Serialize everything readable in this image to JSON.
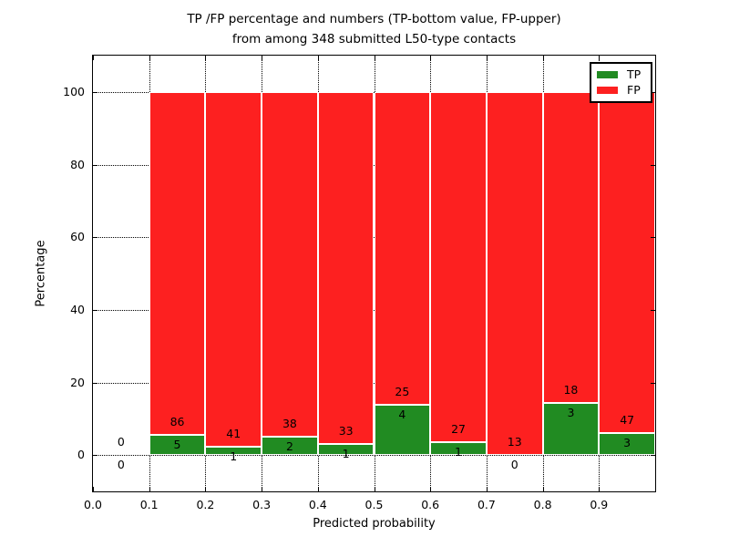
{
  "chart_data": {
    "type": "bar",
    "stacked": true,
    "title_lines": [
      "TP /FP percentage and numbers (TP-bottom value, FP-upper)",
      "from among 348 submitted L50-type contacts"
    ],
    "total_contacts": 348,
    "xlabel": "Predicted probability",
    "ylabel": "Percentage",
    "xlim": [
      0.0,
      1.0
    ],
    "ylim": [
      -10,
      110
    ],
    "grid": "dotted",
    "x_ticks": [
      {
        "v": 0.0,
        "label": "0.0"
      },
      {
        "v": 0.1,
        "label": "0.1"
      },
      {
        "v": 0.2,
        "label": "0.2"
      },
      {
        "v": 0.3,
        "label": "0.3"
      },
      {
        "v": 0.4,
        "label": "0.4"
      },
      {
        "v": 0.5,
        "label": "0.5"
      },
      {
        "v": 0.6,
        "label": "0.6"
      },
      {
        "v": 0.7,
        "label": "0.7"
      },
      {
        "v": 0.8,
        "label": "0.8"
      },
      {
        "v": 0.9,
        "label": "0.9"
      }
    ],
    "y_ticks": [
      {
        "v": 0,
        "label": "0"
      },
      {
        "v": 20,
        "label": "20"
      },
      {
        "v": 40,
        "label": "40"
      },
      {
        "v": 60,
        "label": "60"
      },
      {
        "v": 80,
        "label": "80"
      },
      {
        "v": 100,
        "label": "100"
      }
    ],
    "series": [
      {
        "name": "TP",
        "color": "#218b22"
      },
      {
        "name": "FP",
        "color": "#fd2020"
      }
    ],
    "legend_position": "upper right",
    "bins": [
      {
        "x_start": 0.0,
        "x_end": 0.1,
        "tp": 0,
        "fp": 0
      },
      {
        "x_start": 0.1,
        "x_end": 0.2,
        "tp": 5,
        "fp": 86
      },
      {
        "x_start": 0.2,
        "x_end": 0.3,
        "tp": 1,
        "fp": 41
      },
      {
        "x_start": 0.3,
        "x_end": 0.4,
        "tp": 2,
        "fp": 38
      },
      {
        "x_start": 0.4,
        "x_end": 0.5,
        "tp": 1,
        "fp": 33
      },
      {
        "x_start": 0.5,
        "x_end": 0.6,
        "tp": 4,
        "fp": 25
      },
      {
        "x_start": 0.6,
        "x_end": 0.7,
        "tp": 1,
        "fp": 27
      },
      {
        "x_start": 0.7,
        "x_end": 0.8,
        "tp": 0,
        "fp": 13
      },
      {
        "x_start": 0.8,
        "x_end": 0.9,
        "tp": 3,
        "fp": 18
      },
      {
        "x_start": 0.9,
        "x_end": 1.0,
        "tp": 3,
        "fp": 47
      }
    ]
  }
}
